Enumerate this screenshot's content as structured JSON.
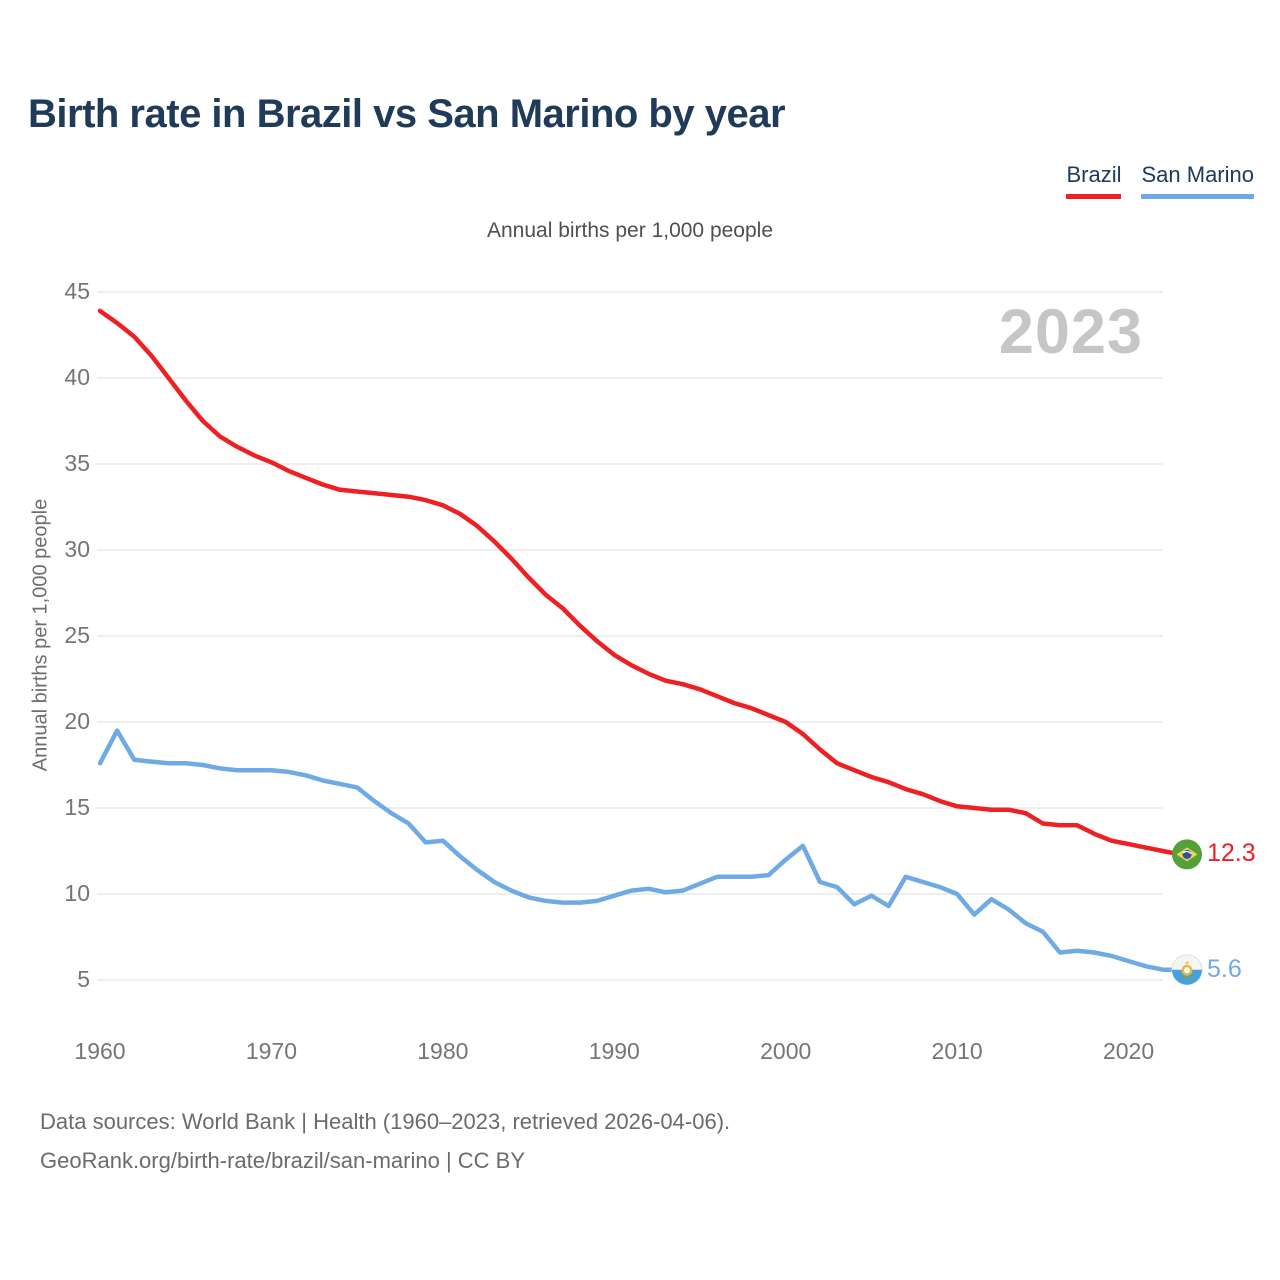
{
  "footer": {
    "line1": "Data sources: World Bank | Health (1960–2023, retrieved 2026-04-06).",
    "line2": "GeoRank.org/birth-rate/brazil/san-marino | CC BY"
  },
  "chart_data": {
    "type": "line",
    "title": "Birth rate in Brazil vs San Marino by year",
    "subtitle": "Annual births per 1,000 people",
    "ylabel": "Annual births per 1,000 people",
    "watermark": "2023",
    "grid": true,
    "legend_position": "top-right",
    "xlim": [
      1960,
      2023
    ],
    "ylim": [
      5,
      45
    ],
    "xticks": [
      1960,
      1970,
      1980,
      1990,
      2000,
      2010,
      2020
    ],
    "yticks": [
      45,
      40,
      35,
      30,
      25,
      20,
      15,
      10,
      5
    ],
    "years": [
      1960,
      1961,
      1962,
      1963,
      1964,
      1965,
      1966,
      1967,
      1968,
      1969,
      1970,
      1971,
      1972,
      1973,
      1974,
      1975,
      1976,
      1977,
      1978,
      1979,
      1980,
      1981,
      1982,
      1983,
      1984,
      1985,
      1986,
      1987,
      1988,
      1989,
      1990,
      1991,
      1992,
      1993,
      1994,
      1995,
      1996,
      1997,
      1998,
      1999,
      2000,
      2001,
      2002,
      2003,
      2004,
      2005,
      2006,
      2007,
      2008,
      2009,
      2010,
      2011,
      2012,
      2013,
      2014,
      2015,
      2016,
      2017,
      2018,
      2019,
      2020,
      2021,
      2022,
      2023
    ],
    "series": [
      {
        "name": "Brazil",
        "color": "#ed2124",
        "end_label": "12.3",
        "end_value": 12.3,
        "values": [
          43.9,
          43.2,
          42.4,
          41.3,
          40.0,
          38.7,
          37.5,
          36.6,
          36.0,
          35.5,
          35.1,
          34.6,
          34.2,
          33.8,
          33.5,
          33.4,
          33.3,
          33.2,
          33.1,
          32.9,
          32.6,
          32.1,
          31.4,
          30.5,
          29.5,
          28.4,
          27.4,
          26.6,
          25.6,
          24.7,
          23.9,
          23.3,
          22.8,
          22.4,
          22.2,
          21.9,
          21.5,
          21.1,
          20.8,
          20.4,
          20.0,
          19.3,
          18.4,
          17.6,
          17.2,
          16.8,
          16.5,
          16.1,
          15.8,
          15.4,
          15.1,
          15.0,
          14.9,
          14.9,
          14.7,
          14.1,
          14.0,
          14.0,
          13.5,
          13.1,
          12.9,
          12.7,
          12.5,
          12.3
        ]
      },
      {
        "name": "San Marino",
        "color": "#70aae4",
        "end_label": "5.6",
        "end_value": 5.6,
        "values": [
          17.6,
          19.5,
          17.8,
          17.7,
          17.6,
          17.6,
          17.5,
          17.3,
          17.2,
          17.2,
          17.2,
          17.1,
          16.9,
          16.6,
          16.4,
          16.2,
          15.4,
          14.7,
          14.1,
          13.0,
          13.1,
          12.2,
          11.4,
          10.7,
          10.2,
          9.8,
          9.6,
          9.5,
          9.5,
          9.6,
          9.9,
          10.2,
          10.3,
          10.1,
          10.2,
          10.6,
          11.0,
          11.0,
          11.0,
          11.1,
          12.0,
          12.8,
          10.7,
          10.4,
          9.4,
          9.9,
          9.3,
          11.0,
          10.7,
          10.4,
          10.0,
          8.8,
          9.7,
          9.1,
          8.3,
          7.8,
          6.6,
          6.7,
          6.6,
          6.4,
          6.1,
          5.8,
          5.6,
          5.6
        ]
      }
    ]
  }
}
